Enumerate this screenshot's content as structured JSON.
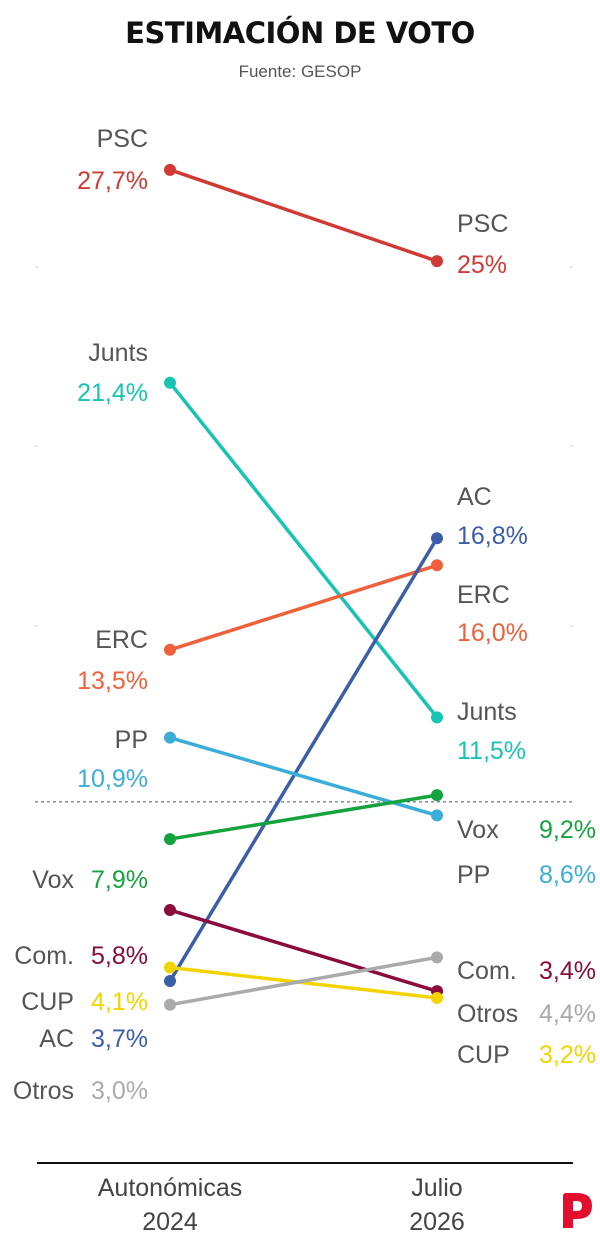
{
  "chart_data": {
    "type": "line",
    "title": "ESTIMACIÓN DE VOTO",
    "subtitle": "Fuente: GESOP",
    "x": [
      "Autonómicas 2024",
      "Julio 2026"
    ],
    "x_tick_labels": [
      [
        "Autonómicas",
        "2024"
      ],
      [
        "Julio",
        "2026"
      ]
    ],
    "ylim": [
      0,
      30
    ],
    "series": [
      {
        "name": "PSC",
        "values": [
          27.7,
          25
        ],
        "value_labels": [
          "27,7%",
          "25%"
        ],
        "color": "#d13a34"
      },
      {
        "name": "Junts",
        "values": [
          21.4,
          11.5
        ],
        "value_labels": [
          "21,4%",
          "11,5%"
        ],
        "color": "#17c4b3"
      },
      {
        "name": "ERC",
        "values": [
          13.5,
          16.0
        ],
        "value_labels": [
          "13,5%",
          "16,0%"
        ],
        "color": "#f0603a"
      },
      {
        "name": "AC",
        "values": [
          3.7,
          16.8
        ],
        "value_labels": [
          "3,7%",
          "16,8%"
        ],
        "color": "#3c5ea8"
      },
      {
        "name": "PP",
        "values": [
          10.9,
          8.6
        ],
        "value_labels": [
          "10,9%",
          "8,6%"
        ],
        "color": "#3aaed8"
      },
      {
        "name": "Vox",
        "values": [
          7.9,
          9.2
        ],
        "value_labels": [
          "7,9%",
          "9,2%"
        ],
        "color": "#14a33c"
      },
      {
        "name": "Com.",
        "values": [
          5.8,
          3.4
        ],
        "value_labels": [
          "5,8%",
          "3,4%"
        ],
        "color": "#8a0b3c"
      },
      {
        "name": "CUP",
        "values": [
          4.1,
          3.2
        ],
        "value_labels": [
          "4,1%",
          "3,2%"
        ],
        "color": "#f2d400"
      },
      {
        "name": "Otros",
        "values": [
          3.0,
          4.4
        ],
        "value_labels": [
          "3,0%",
          "4,4%"
        ],
        "color": "#aaaaaa"
      }
    ],
    "reference_line": {
      "value": 9,
      "style": "dashed"
    },
    "legend": "none",
    "grid": false
  },
  "colors": {
    "text": "#111111",
    "label_name": "#555555",
    "axis": "#111111",
    "brand": "#e30e2d"
  },
  "brand_icon": "publico-p-logo"
}
